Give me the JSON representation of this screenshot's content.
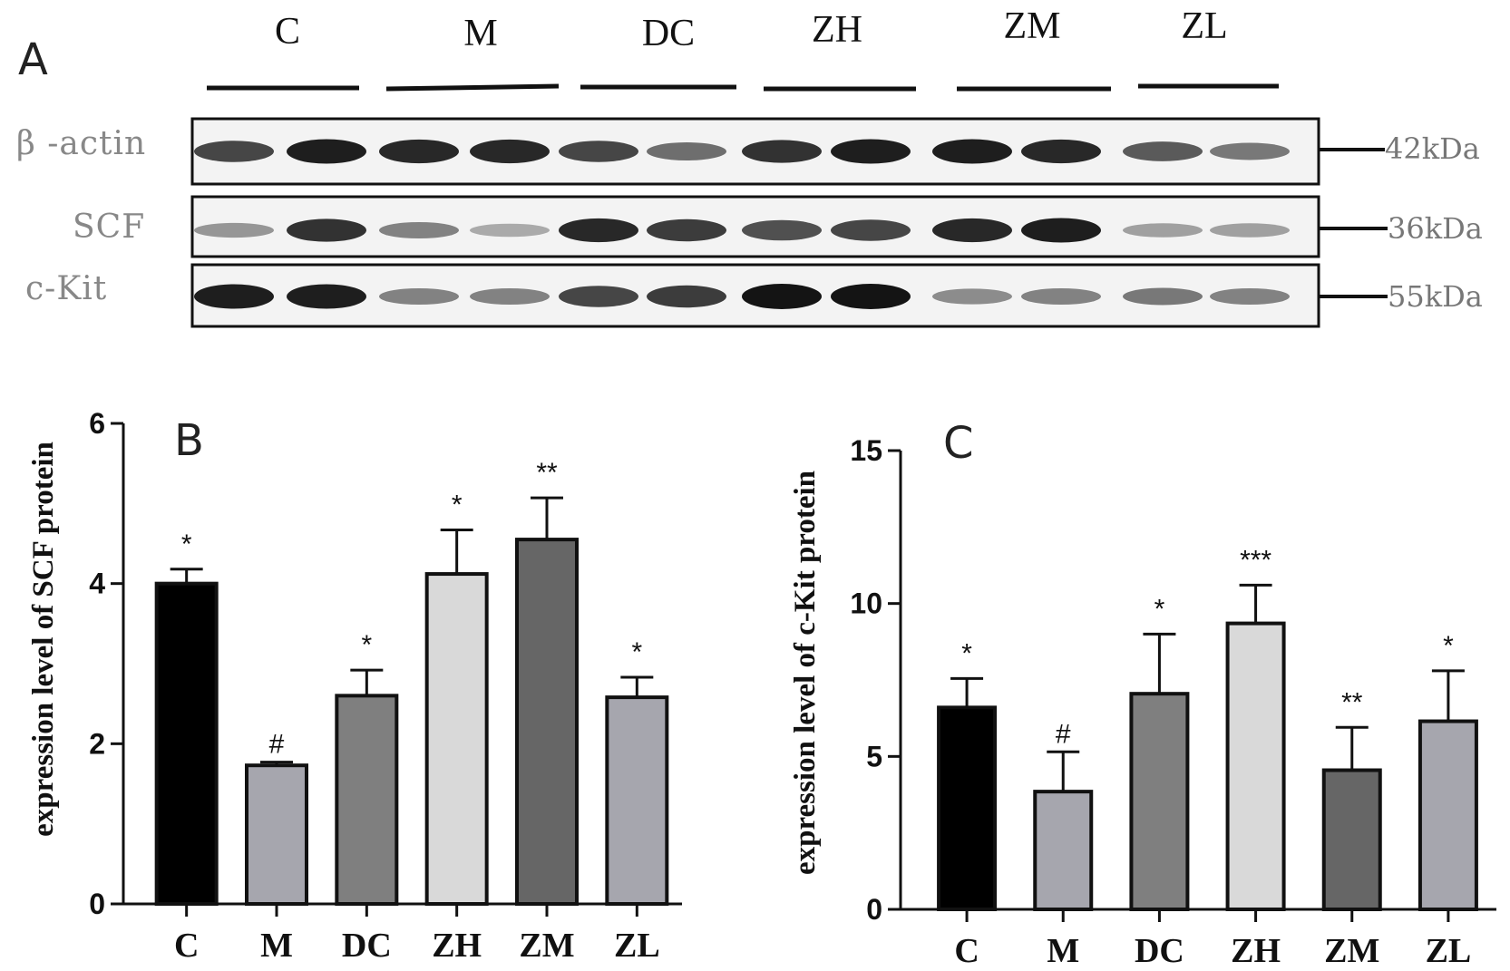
{
  "blot": {
    "panel_letter": "A",
    "groups": [
      "C",
      "M",
      "DC",
      "ZH",
      "ZM",
      "ZL"
    ],
    "rows": [
      {
        "label": "β -actin",
        "kda": "42kDa",
        "band_intensity": [
          0.75,
          0.95,
          0.9,
          0.9,
          0.75,
          0.55,
          0.85,
          0.95,
          0.95,
          0.9,
          0.65,
          0.5
        ]
      },
      {
        "label": "SCF",
        "kda": "36kDa",
        "band_intensity": [
          0.35,
          0.85,
          0.45,
          0.25,
          0.9,
          0.8,
          0.7,
          0.75,
          0.9,
          0.95,
          0.3,
          0.3
        ]
      },
      {
        "label": "c-Kit",
        "kda": "55kDa",
        "band_intensity": [
          0.95,
          0.95,
          0.45,
          0.45,
          0.75,
          0.8,
          1.0,
          1.0,
          0.4,
          0.45,
          0.5,
          0.45
        ]
      }
    ]
  },
  "chart_data": [
    {
      "type": "bar",
      "panel_letter": "B",
      "title": "",
      "ylabel": "expression level of SCF protein",
      "xlabel": "",
      "categories": [
        "C",
        "M",
        "DC",
        "ZH",
        "ZM",
        "ZL"
      ],
      "values": [
        4.0,
        1.73,
        2.6,
        4.12,
        4.55,
        2.58
      ],
      "errors": [
        0.18,
        0.04,
        0.32,
        0.55,
        0.52,
        0.25
      ],
      "significance": [
        "*",
        "#",
        "*",
        "*",
        "**",
        "*"
      ],
      "colors": [
        "#000000",
        "#a6a6ae",
        "#7f7f7f",
        "#d9d9d9",
        "#666666",
        "#a6a6ae"
      ],
      "ylim": [
        0,
        6
      ],
      "yticks": [
        0,
        2,
        4,
        6
      ],
      "grid": false,
      "legend": "none"
    },
    {
      "type": "bar",
      "panel_letter": "C",
      "title": "",
      "ylabel": "expression level of c-Kit protein",
      "xlabel": "",
      "categories": [
        "C",
        "M",
        "DC",
        "ZH",
        "ZM",
        "ZL"
      ],
      "values": [
        6.6,
        3.85,
        7.05,
        9.35,
        4.55,
        6.15
      ],
      "errors": [
        0.95,
        1.3,
        1.95,
        1.25,
        1.4,
        1.65
      ],
      "significance": [
        "*",
        "#",
        "*",
        "***",
        "**",
        "*"
      ],
      "colors": [
        "#000000",
        "#a6a6ae",
        "#7f7f7f",
        "#d9d9d9",
        "#666666",
        "#a6a6ae"
      ],
      "ylim": [
        0,
        15
      ],
      "yticks": [
        0,
        5,
        10,
        15
      ],
      "grid": false,
      "legend": "none"
    }
  ]
}
